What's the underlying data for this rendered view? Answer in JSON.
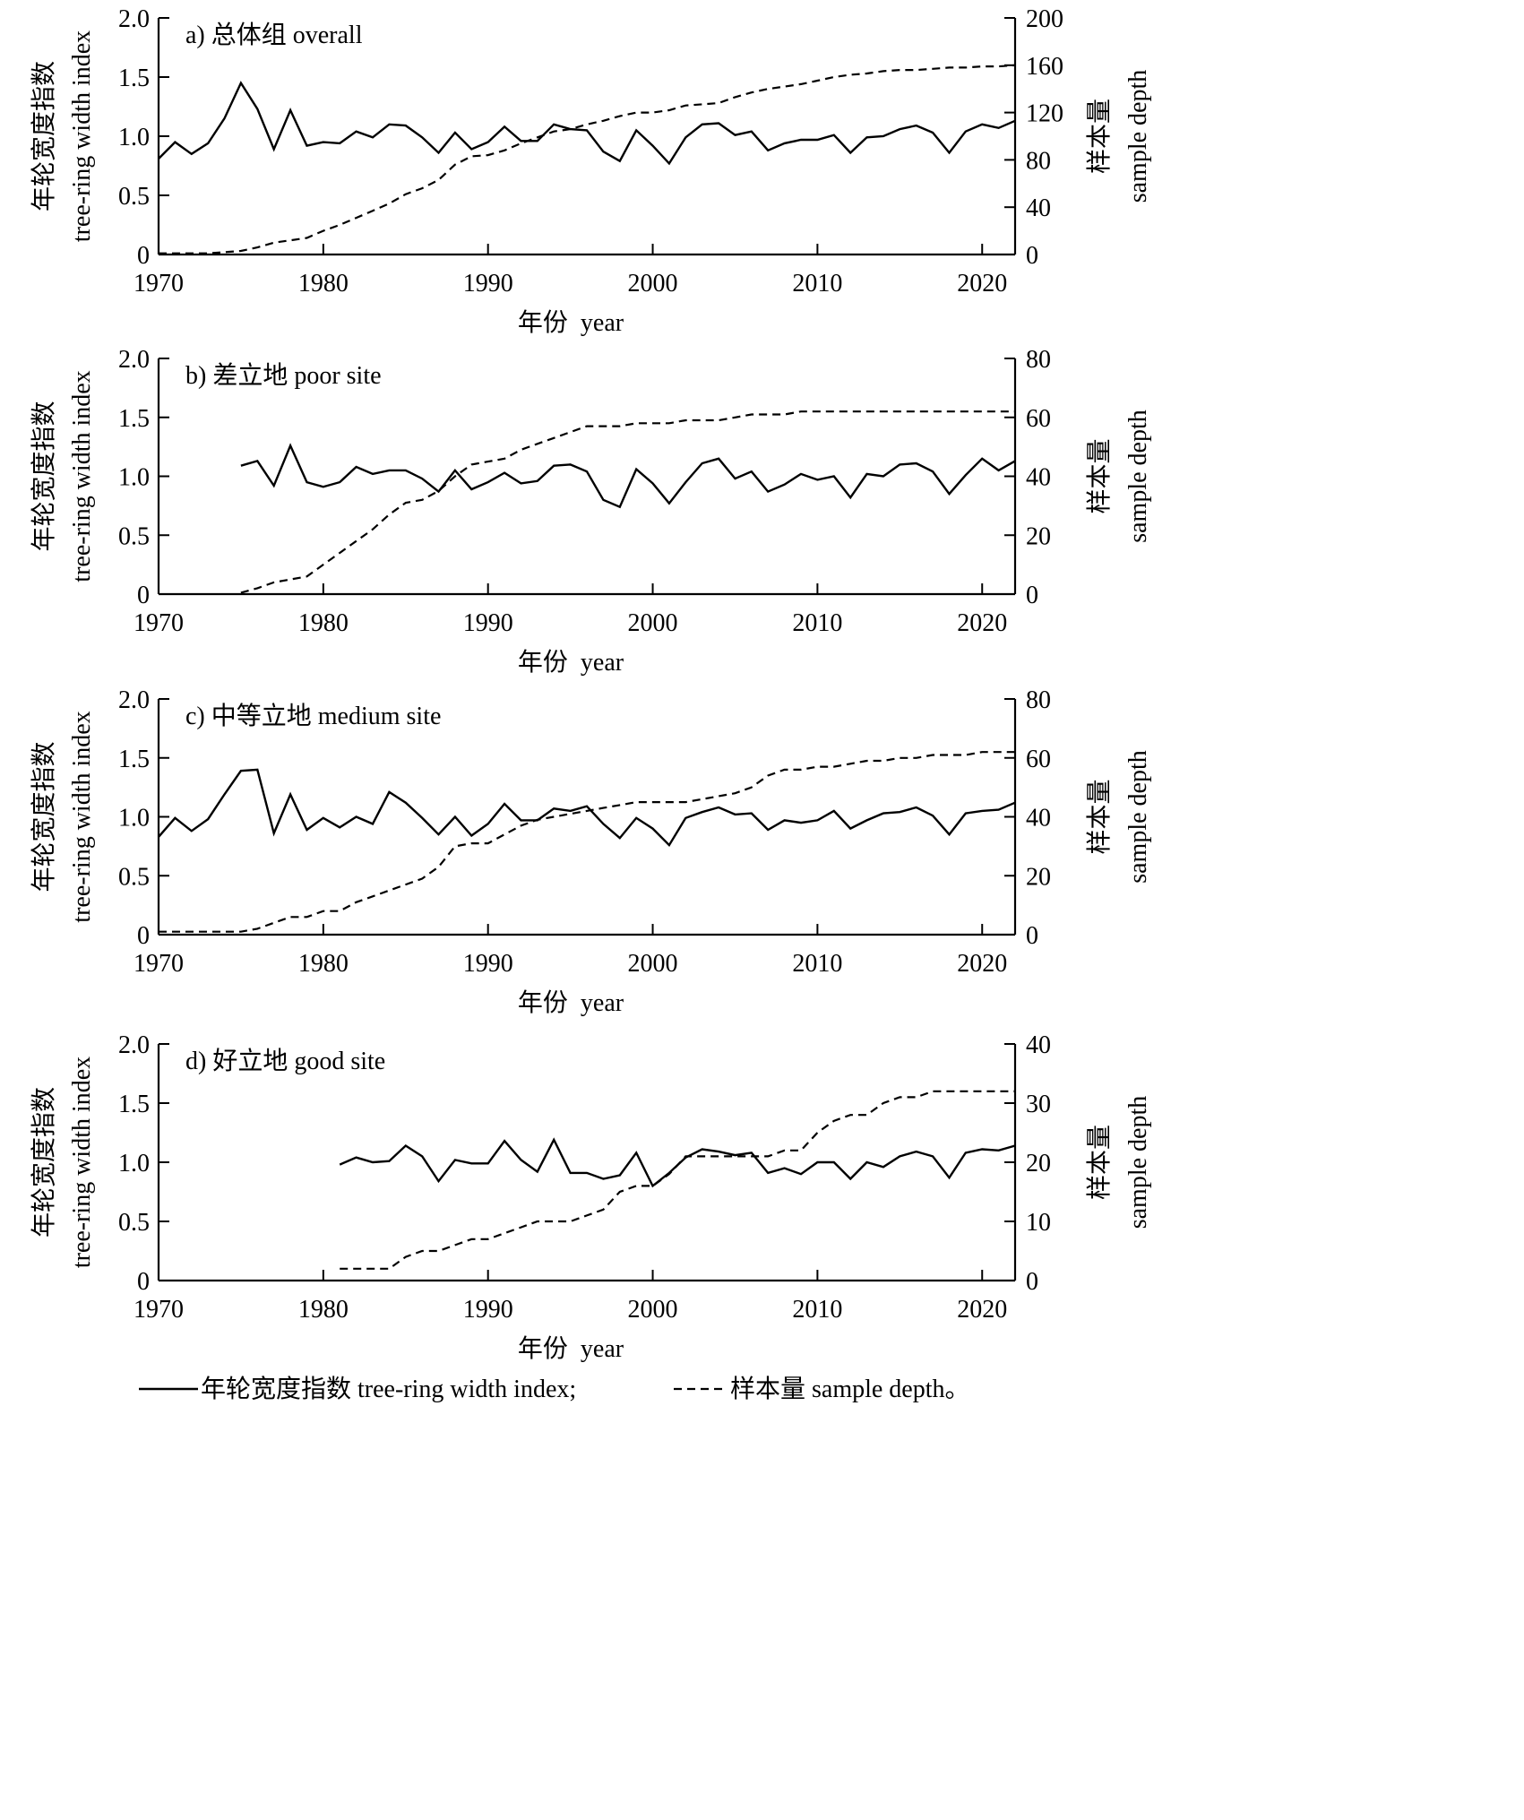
{
  "chart_data": [
    {
      "id": "a",
      "type": "line",
      "title": "a) 总体组 overall",
      "xlabel": "年份  year",
      "ylabel_left": [
        "年轮宽度指数",
        "tree-ring width index"
      ],
      "ylabel_right": [
        "样本量",
        "sample depth"
      ],
      "xlim": [
        1970,
        2022
      ],
      "ylim_left": [
        0,
        2.0
      ],
      "ylim_right": [
        0,
        200
      ],
      "xticks": [
        1970,
        1980,
        1990,
        2000,
        2010,
        2020
      ],
      "yticks_left": [
        0,
        0.5,
        1.0,
        1.5,
        2.0
      ],
      "ytick_labels_left": [
        "0",
        "0.5",
        "1.0",
        "1.5",
        "2.0"
      ],
      "yticks_right": [
        0,
        40,
        80,
        120,
        160,
        200
      ],
      "ytick_labels_right": [
        "0",
        "40",
        "80",
        "120",
        "160",
        "200"
      ],
      "series": [
        {
          "name": "年轮宽度指数 tree-ring width index",
          "axis": "left",
          "style": "solid",
          "x": [
            1970,
            1971,
            1972,
            1973,
            1974,
            1975,
            1976,
            1977,
            1978,
            1979,
            1980,
            1981,
            1982,
            1983,
            1984,
            1985,
            1986,
            1987,
            1988,
            1989,
            1990,
            1991,
            1992,
            1993,
            1994,
            1995,
            1996,
            1997,
            1998,
            1999,
            2000,
            2001,
            2002,
            2003,
            2004,
            2005,
            2006,
            2007,
            2008,
            2009,
            2010,
            2011,
            2012,
            2013,
            2014,
            2015,
            2016,
            2017,
            2018,
            2019,
            2020,
            2021,
            2022
          ],
          "values": [
            0.81,
            0.95,
            0.85,
            0.94,
            1.15,
            1.45,
            1.23,
            0.89,
            1.22,
            0.92,
            0.95,
            0.94,
            1.04,
            0.99,
            1.1,
            1.09,
            0.99,
            0.86,
            1.03,
            0.89,
            0.95,
            1.08,
            0.96,
            0.96,
            1.1,
            1.06,
            1.05,
            0.87,
            0.79,
            1.05,
            0.92,
            0.77,
            0.99,
            1.1,
            1.11,
            1.01,
            1.04,
            0.88,
            0.94,
            0.97,
            0.97,
            1.01,
            0.86,
            0.99,
            1.0,
            1.06,
            1.09,
            1.03,
            0.86,
            1.04,
            1.1,
            1.07,
            1.13
          ]
        },
        {
          "name": "样本量 sample depth",
          "axis": "right",
          "style": "dashed",
          "x": [
            1970,
            1971,
            1972,
            1973,
            1974,
            1975,
            1976,
            1977,
            1978,
            1979,
            1980,
            1981,
            1982,
            1983,
            1984,
            1985,
            1986,
            1987,
            1988,
            1989,
            1990,
            1991,
            1992,
            1993,
            1994,
            1995,
            1996,
            1997,
            1998,
            1999,
            2000,
            2001,
            2002,
            2003,
            2004,
            2005,
            2006,
            2007,
            2008,
            2009,
            2010,
            2011,
            2012,
            2013,
            2014,
            2015,
            2016,
            2017,
            2018,
            2019,
            2020,
            2021,
            2022
          ],
          "values": [
            1,
            1,
            1,
            1,
            2,
            3,
            6,
            10,
            12,
            14,
            20,
            25,
            31,
            37,
            43,
            51,
            56,
            63,
            76,
            83,
            84,
            88,
            94,
            99,
            104,
            106,
            110,
            113,
            117,
            120,
            120,
            122,
            126,
            127,
            128,
            133,
            137,
            140,
            142,
            144,
            147,
            150,
            152,
            153,
            155,
            156,
            156,
            157,
            158,
            158,
            159,
            159,
            160
          ]
        }
      ]
    },
    {
      "id": "b",
      "type": "line",
      "title": "b) 差立地 poor site",
      "xlabel": "年份  year",
      "ylabel_left": [
        "年轮宽度指数",
        "tree-ring width index"
      ],
      "ylabel_right": [
        "样本量",
        "sample depth"
      ],
      "xlim": [
        1970,
        2022
      ],
      "ylim_left": [
        0,
        2.0
      ],
      "ylim_right": [
        0,
        80
      ],
      "xticks": [
        1970,
        1980,
        1990,
        2000,
        2010,
        2020
      ],
      "yticks_left": [
        0,
        0.5,
        1.0,
        1.5,
        2.0
      ],
      "ytick_labels_left": [
        "0",
        "0.5",
        "1.0",
        "1.5",
        "2.0"
      ],
      "yticks_right": [
        0,
        20,
        40,
        60,
        80
      ],
      "ytick_labels_right": [
        "0",
        "20",
        "40",
        "60",
        "80"
      ],
      "series": [
        {
          "name": "年轮宽度指数 tree-ring width index",
          "axis": "left",
          "style": "solid",
          "x": [
            1975,
            1976,
            1977,
            1978,
            1979,
            1980,
            1981,
            1982,
            1983,
            1984,
            1985,
            1986,
            1987,
            1988,
            1989,
            1990,
            1991,
            1992,
            1993,
            1994,
            1995,
            1996,
            1997,
            1998,
            1999,
            2000,
            2001,
            2002,
            2003,
            2004,
            2005,
            2006,
            2007,
            2008,
            2009,
            2010,
            2011,
            2012,
            2013,
            2014,
            2015,
            2016,
            2017,
            2018,
            2019,
            2020,
            2021,
            2022
          ],
          "values": [
            1.09,
            1.13,
            0.92,
            1.26,
            0.95,
            0.91,
            0.95,
            1.08,
            1.02,
            1.05,
            1.05,
            0.98,
            0.87,
            1.05,
            0.89,
            0.95,
            1.03,
            0.94,
            0.96,
            1.09,
            1.1,
            1.04,
            0.8,
            0.74,
            1.06,
            0.94,
            0.77,
            0.95,
            1.11,
            1.15,
            0.98,
            1.04,
            0.87,
            0.93,
            1.02,
            0.97,
            1.0,
            0.82,
            1.02,
            1.0,
            1.1,
            1.11,
            1.04,
            0.85,
            1.01,
            1.15,
            1.05,
            1.13
          ]
        },
        {
          "name": "样本量 sample depth",
          "axis": "right",
          "style": "dashed",
          "x": [
            1975,
            1976,
            1977,
            1978,
            1979,
            1980,
            1981,
            1982,
            1983,
            1984,
            1985,
            1986,
            1987,
            1988,
            1989,
            1990,
            1991,
            1992,
            1993,
            1994,
            1995,
            1996,
            1997,
            1998,
            1999,
            2000,
            2001,
            2002,
            2003,
            2004,
            2005,
            2006,
            2007,
            2008,
            2009,
            2010,
            2011,
            2012,
            2013,
            2014,
            2015,
            2016,
            2017,
            2018,
            2019,
            2020,
            2021,
            2022
          ],
          "values": [
            0.5,
            2,
            4,
            5,
            6,
            10,
            14,
            18,
            22,
            27,
            31,
            32,
            35,
            40,
            44,
            45,
            46,
            49,
            51,
            53,
            55,
            57,
            57,
            57,
            58,
            58,
            58,
            59,
            59,
            59,
            60,
            61,
            61,
            61,
            62,
            62,
            62,
            62,
            62,
            62,
            62,
            62,
            62,
            62,
            62,
            62,
            62,
            62
          ]
        }
      ]
    },
    {
      "id": "c",
      "type": "line",
      "title": "c) 中等立地 medium site",
      "xlabel": "年份  year",
      "ylabel_left": [
        "年轮宽度指数",
        "tree-ring width index"
      ],
      "ylabel_right": [
        "样本量",
        "sample depth"
      ],
      "xlim": [
        1970,
        2022
      ],
      "ylim_left": [
        0,
        2.0
      ],
      "ylim_right": [
        0,
        80
      ],
      "xticks": [
        1970,
        1980,
        1990,
        2000,
        2010,
        2020
      ],
      "yticks_left": [
        0,
        0.5,
        1.0,
        1.5,
        2.0
      ],
      "ytick_labels_left": [
        "0",
        "0.5",
        "1.0",
        "1.5",
        "2.0"
      ],
      "yticks_right": [
        0,
        20,
        40,
        60,
        80
      ],
      "ytick_labels_right": [
        "0",
        "20",
        "40",
        "60",
        "80"
      ],
      "series": [
        {
          "name": "年轮宽度指数 tree-ring width index",
          "axis": "left",
          "style": "solid",
          "x": [
            1970,
            1971,
            1972,
            1973,
            1974,
            1975,
            1976,
            1977,
            1978,
            1979,
            1980,
            1981,
            1982,
            1983,
            1984,
            1985,
            1986,
            1987,
            1988,
            1989,
            1990,
            1991,
            1992,
            1993,
            1994,
            1995,
            1996,
            1997,
            1998,
            1999,
            2000,
            2001,
            2002,
            2003,
            2004,
            2005,
            2006,
            2007,
            2008,
            2009,
            2010,
            2011,
            2012,
            2013,
            2014,
            2015,
            2016,
            2017,
            2018,
            2019,
            2020,
            2021,
            2022
          ],
          "values": [
            0.83,
            0.99,
            0.88,
            0.98,
            1.19,
            1.39,
            1.4,
            0.86,
            1.19,
            0.89,
            0.99,
            0.91,
            1.0,
            0.94,
            1.21,
            1.12,
            0.99,
            0.85,
            1.0,
            0.84,
            0.94,
            1.11,
            0.97,
            0.97,
            1.07,
            1.05,
            1.09,
            0.94,
            0.82,
            0.99,
            0.9,
            0.76,
            0.99,
            1.04,
            1.08,
            1.02,
            1.03,
            0.89,
            0.97,
            0.95,
            0.97,
            1.05,
            0.9,
            0.97,
            1.03,
            1.04,
            1.08,
            1.01,
            0.85,
            1.03,
            1.05,
            1.06,
            1.12
          ]
        },
        {
          "name": "样本量 sample depth",
          "axis": "right",
          "style": "dashed",
          "x": [
            1970,
            1971,
            1972,
            1973,
            1974,
            1975,
            1976,
            1977,
            1978,
            1979,
            1980,
            1981,
            1982,
            1983,
            1984,
            1985,
            1986,
            1987,
            1988,
            1989,
            1990,
            1991,
            1992,
            1993,
            1994,
            1995,
            1996,
            1997,
            1998,
            1999,
            2000,
            2001,
            2002,
            2003,
            2004,
            2005,
            2006,
            2007,
            2008,
            2009,
            2010,
            2011,
            2012,
            2013,
            2014,
            2015,
            2016,
            2017,
            2018,
            2019,
            2020,
            2021,
            2022
          ],
          "values": [
            1,
            1,
            1,
            1,
            1,
            1,
            2,
            4,
            6,
            6,
            8,
            8,
            11,
            13,
            15,
            17,
            19,
            23,
            30,
            31,
            31,
            34,
            37,
            39,
            40,
            41,
            42,
            43,
            44,
            45,
            45,
            45,
            45,
            46,
            47,
            48,
            50,
            54,
            56,
            56,
            57,
            57,
            58,
            59,
            59,
            60,
            60,
            61,
            61,
            61,
            62,
            62,
            62
          ]
        }
      ]
    },
    {
      "id": "d",
      "type": "line",
      "title": "d) 好立地 good site",
      "xlabel": "年份  year",
      "ylabel_left": [
        "年轮宽度指数",
        "tree-ring width index"
      ],
      "ylabel_right": [
        "样本量",
        "sample depth"
      ],
      "xlim": [
        1970,
        2022
      ],
      "ylim_left": [
        0,
        2.0
      ],
      "ylim_right": [
        0,
        40
      ],
      "xticks": [
        1970,
        1980,
        1990,
        2000,
        2010,
        2020
      ],
      "yticks_left": [
        0,
        0.5,
        1.0,
        1.5,
        2.0
      ],
      "ytick_labels_left": [
        "0",
        "0.5",
        "1.0",
        "1.5",
        "2.0"
      ],
      "yticks_right": [
        0,
        10,
        20,
        30,
        40
      ],
      "ytick_labels_right": [
        "0",
        "10",
        "20",
        "30",
        "40"
      ],
      "series": [
        {
          "name": "年轮宽度指数 tree-ring width index",
          "axis": "left",
          "style": "solid",
          "x": [
            1981,
            1982,
            1983,
            1984,
            1985,
            1986,
            1987,
            1988,
            1989,
            1990,
            1991,
            1992,
            1993,
            1994,
            1995,
            1996,
            1997,
            1998,
            1999,
            2000,
            2001,
            2002,
            2003,
            2004,
            2005,
            2006,
            2007,
            2008,
            2009,
            2010,
            2011,
            2012,
            2013,
            2014,
            2015,
            2016,
            2017,
            2018,
            2019,
            2020,
            2021,
            2022
          ],
          "values": [
            0.98,
            1.04,
            1.0,
            1.01,
            1.14,
            1.05,
            0.84,
            1.02,
            0.99,
            0.99,
            1.18,
            1.02,
            0.92,
            1.19,
            0.91,
            0.91,
            0.86,
            0.89,
            1.08,
            0.8,
            0.91,
            1.04,
            1.11,
            1.09,
            1.06,
            1.08,
            0.91,
            0.95,
            0.9,
            1.0,
            1.0,
            0.86,
            1.0,
            0.96,
            1.05,
            1.09,
            1.05,
            0.87,
            1.08,
            1.11,
            1.1,
            1.14
          ]
        },
        {
          "name": "样本量 sample depth",
          "axis": "right",
          "style": "dashed",
          "x": [
            1981,
            1982,
            1983,
            1984,
            1985,
            1986,
            1987,
            1988,
            1989,
            1990,
            1991,
            1992,
            1993,
            1994,
            1995,
            1996,
            1997,
            1998,
            1999,
            2000,
            2001,
            2002,
            2003,
            2004,
            2005,
            2006,
            2007,
            2008,
            2009,
            2010,
            2011,
            2012,
            2013,
            2014,
            2015,
            2016,
            2017,
            2018,
            2019,
            2020,
            2021,
            2022
          ],
          "values": [
            2,
            2,
            2,
            2,
            4,
            5,
            5,
            6,
            7,
            7,
            8,
            9,
            10,
            10,
            10,
            11,
            12,
            15,
            16,
            16,
            18,
            21,
            21,
            21,
            21,
            21,
            21,
            22,
            22,
            25,
            27,
            28,
            28,
            30,
            31,
            31,
            32,
            32,
            32,
            32,
            32,
            32
          ]
        }
      ]
    }
  ],
  "legend": {
    "solid_label": "年轮宽度指数 tree-ring width index;",
    "dashed_label": "样本量 sample depth。"
  }
}
